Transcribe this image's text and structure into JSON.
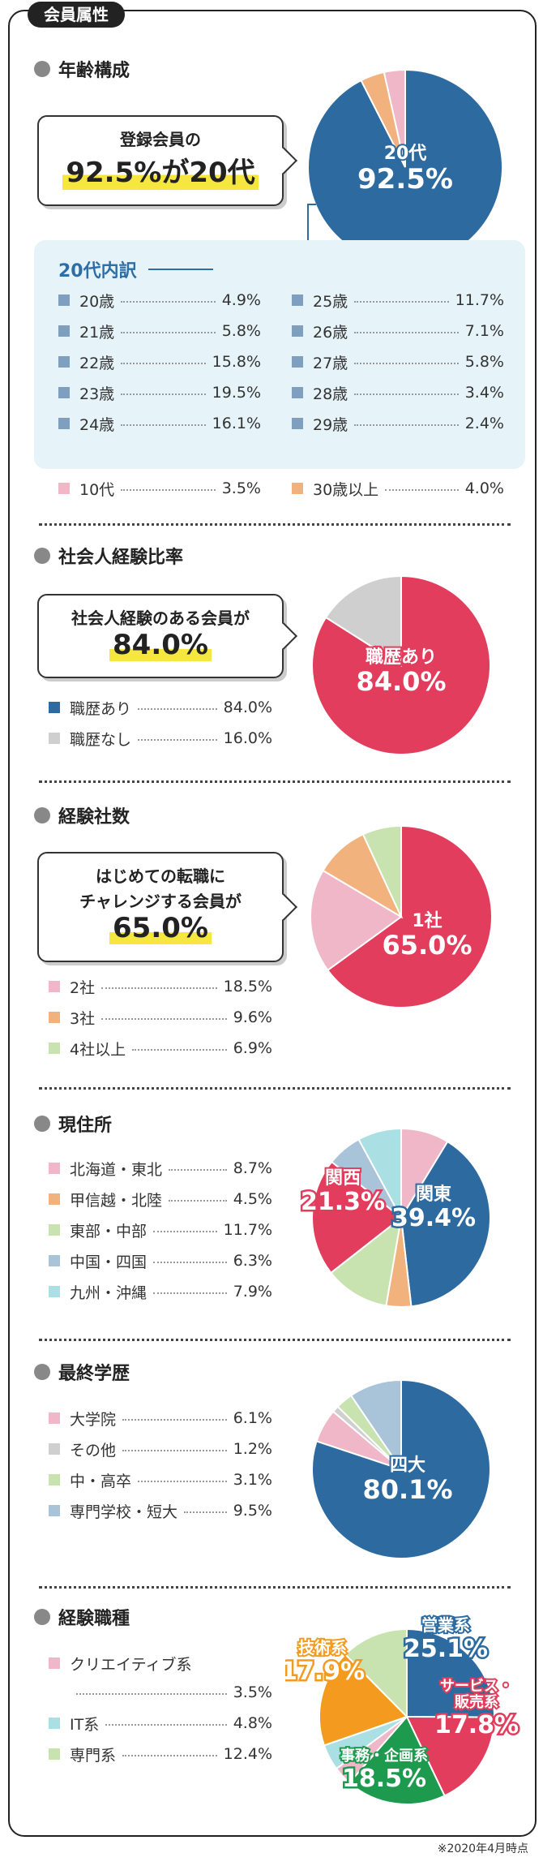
{
  "frame_title": "会員属性",
  "footnote": "※2020年4月時点",
  "age": {
    "title": "年齢構成",
    "callout_line1": "登録会員の",
    "callout_big": "92.5%が20代",
    "breakdown_title": "20代内訳",
    "breakdown_left": [
      {
        "label": "20歳",
        "value": "4.9%"
      },
      {
        "label": "21歳",
        "value": "5.8%"
      },
      {
        "label": "22歳",
        "value": "15.8%"
      },
      {
        "label": "23歳",
        "value": "19.5%"
      },
      {
        "label": "24歳",
        "value": "16.1%"
      }
    ],
    "breakdown_right": [
      {
        "label": "25歳",
        "value": "11.7%"
      },
      {
        "label": "26歳",
        "value": "7.1%"
      },
      {
        "label": "27歳",
        "value": "5.8%"
      },
      {
        "label": "28歳",
        "value": "3.4%"
      },
      {
        "label": "29歳",
        "value": "2.4%"
      }
    ],
    "others": [
      {
        "label": "10代",
        "value": "3.5%",
        "color": "#f0b7c8"
      },
      {
        "label": "30歳以上",
        "value": "4.0%",
        "color": "#f2b27e"
      }
    ],
    "breakdown_color": "#7f9fbf"
  },
  "career": {
    "title": "社会人経験比率",
    "callout_line1": "社会人経験のある会員が",
    "callout_big": "84.0%",
    "legend": [
      {
        "label": "職歴あり",
        "value": "84.0%",
        "color": "#2c6aa0"
      },
      {
        "label": "職歴なし",
        "value": "16.0%",
        "color": "#cfcfcf"
      }
    ]
  },
  "companies": {
    "title": "経験社数",
    "callout_line1": "はじめての転職に",
    "callout_line2": "チャレンジする会員が",
    "callout_big": "65.0%",
    "legend": [
      {
        "label": "2社",
        "value": "18.5%",
        "color": "#f0b7c8"
      },
      {
        "label": "3社",
        "value": "9.6%",
        "color": "#f2b27e"
      },
      {
        "label": "4社以上",
        "value": "6.9%",
        "color": "#c8e3b0"
      }
    ]
  },
  "residence": {
    "title": "現住所",
    "legend": [
      {
        "label": "北海道・東北",
        "value": "8.7%",
        "color": "#f0b7c8"
      },
      {
        "label": "甲信越・北陸",
        "value": "4.5%",
        "color": "#f2b27e"
      },
      {
        "label": "東部・中部",
        "value": "11.7%",
        "color": "#c8e3b0"
      },
      {
        "label": "中国・四国",
        "value": "6.3%",
        "color": "#a9c3d9"
      },
      {
        "label": "九州・沖縄",
        "value": "7.9%",
        "color": "#aadfe3"
      }
    ]
  },
  "education": {
    "title": "最終学歴",
    "legend": [
      {
        "label": "大学院",
        "value": "6.1%",
        "color": "#f0b7c8"
      },
      {
        "label": "その他",
        "value": "1.2%",
        "color": "#cfcfcf"
      },
      {
        "label": "中・高卒",
        "value": "3.1%",
        "color": "#c8e3b0"
      },
      {
        "label": "専門学校・短大",
        "value": "9.5%",
        "color": "#a9c3d9"
      }
    ]
  },
  "jobs": {
    "title": "経験職種",
    "legend": [
      {
        "label": "クリエイティブ系",
        "value": "3.5%",
        "color": "#f0b7c8"
      },
      {
        "label": "IT系",
        "value": "4.8%",
        "color": "#aadfe3"
      },
      {
        "label": "専門系",
        "value": "12.4%",
        "color": "#c8e3b0"
      }
    ]
  },
  "chart_data": [
    {
      "type": "pie",
      "title": "年齢構成",
      "slices": [
        {
          "name": "20代",
          "value": 92.5,
          "color": "#2c6aa0",
          "label": "20代",
          "label_value": "92.5%"
        },
        {
          "name": "30歳以上",
          "value": 4.0,
          "color": "#f2b27e"
        },
        {
          "name": "10代",
          "value": 3.5,
          "color": "#f0b7c8"
        }
      ]
    },
    {
      "type": "pie",
      "title": "社会人経験比率",
      "slices": [
        {
          "name": "職歴あり",
          "value": 84.0,
          "color": "#e23d5c",
          "label": "職歴あり",
          "label_value": "84.0%"
        },
        {
          "name": "職歴なし",
          "value": 16.0,
          "color": "#cfcfcf"
        }
      ]
    },
    {
      "type": "pie",
      "title": "経験社数",
      "slices": [
        {
          "name": "1社",
          "value": 65.0,
          "color": "#e23d5c",
          "label": "1社",
          "label_value": "65.0%"
        },
        {
          "name": "2社",
          "value": 18.5,
          "color": "#f0b7c8"
        },
        {
          "name": "3社",
          "value": 9.6,
          "color": "#f2b27e"
        },
        {
          "name": "4社以上",
          "value": 6.9,
          "color": "#c8e3b0"
        }
      ]
    },
    {
      "type": "pie",
      "title": "現住所",
      "slices": [
        {
          "name": "北海道・東北",
          "value": 8.7,
          "color": "#f0b7c8"
        },
        {
          "name": "関東",
          "value": 39.4,
          "color": "#2c6aa0",
          "label": "関東",
          "label_value": "39.4%"
        },
        {
          "name": "甲信越・北陸",
          "value": 4.5,
          "color": "#f2b27e"
        },
        {
          "name": "東部・中部",
          "value": 11.7,
          "color": "#c8e3b0"
        },
        {
          "name": "関西",
          "value": 21.3,
          "color": "#e23d5c",
          "label": "関西",
          "label_value": "21.3%"
        },
        {
          "name": "中国・四国",
          "value": 6.3,
          "color": "#a9c3d9"
        },
        {
          "name": "九州・沖縄",
          "value": 7.9,
          "color": "#aadfe3"
        }
      ]
    },
    {
      "type": "pie",
      "title": "最終学歴",
      "slices": [
        {
          "name": "四大",
          "value": 80.1,
          "color": "#2c6aa0",
          "label": "四大",
          "label_value": "80.1%"
        },
        {
          "name": "大学院",
          "value": 6.1,
          "color": "#f0b7c8"
        },
        {
          "name": "その他",
          "value": 1.2,
          "color": "#cfcfcf"
        },
        {
          "name": "中・高卒",
          "value": 3.1,
          "color": "#c8e3b0"
        },
        {
          "name": "専門学校・短大",
          "value": 9.5,
          "color": "#a9c3d9"
        }
      ]
    },
    {
      "type": "pie",
      "title": "経験職種",
      "slices": [
        {
          "name": "営業系",
          "value": 25.1,
          "color": "#2c6aa0",
          "label": "営業系",
          "label_value": "25.1%"
        },
        {
          "name": "サービス・販売系",
          "value": 17.8,
          "color": "#e23d5c",
          "label": "サービス・販売系",
          "label_value": "17.8%"
        },
        {
          "name": "事務・企画系",
          "value": 18.5,
          "color": "#1e9a4f",
          "label": "事務・企画系",
          "label_value": "18.5%"
        },
        {
          "name": "クリエイティブ系",
          "value": 3.5,
          "color": "#f0b7c8"
        },
        {
          "name": "IT系",
          "value": 4.8,
          "color": "#aadfe3"
        },
        {
          "name": "技術系",
          "value": 17.9,
          "color": "#f49a1f",
          "label": "技術系",
          "label_value": "17.9%"
        },
        {
          "name": "専門系",
          "value": 12.4,
          "color": "#c8e3b0"
        }
      ]
    }
  ]
}
